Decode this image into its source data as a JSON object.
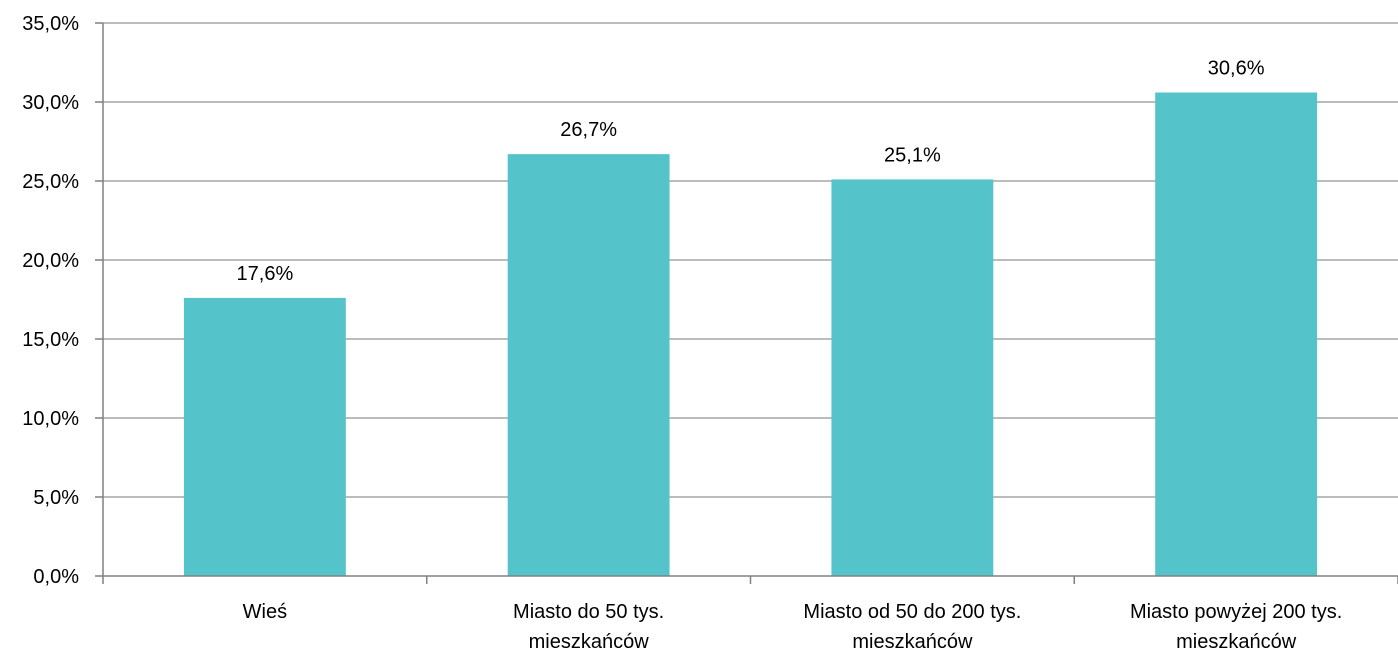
{
  "chart_data": {
    "type": "bar",
    "categories": [
      [
        "Wieś"
      ],
      [
        "Miasto do 50 tys.",
        "mieszkańców"
      ],
      [
        "Miasto od 50 do 200 tys.",
        "mieszkańców"
      ],
      [
        "Miasto powyżej 200 tys.",
        "mieszkańców"
      ]
    ],
    "values": [
      17.6,
      26.7,
      25.1,
      30.6
    ],
    "data_labels": [
      "17,6%",
      "26,7%",
      "25,1%",
      "30,6%"
    ],
    "y_ticks": [
      0,
      5,
      10,
      15,
      20,
      25,
      30,
      35
    ],
    "y_tick_labels": [
      "0,0%",
      "5,0%",
      "10,0%",
      "15,0%",
      "20,0%",
      "25,0%",
      "30,0%",
      "35,0%"
    ],
    "ylim": [
      0,
      35
    ],
    "grid": true,
    "legend": "none",
    "colors": {
      "bar": "#55C4CA",
      "grid": "#A6A6A6",
      "axis": "#808080",
      "text": "#000000"
    }
  }
}
